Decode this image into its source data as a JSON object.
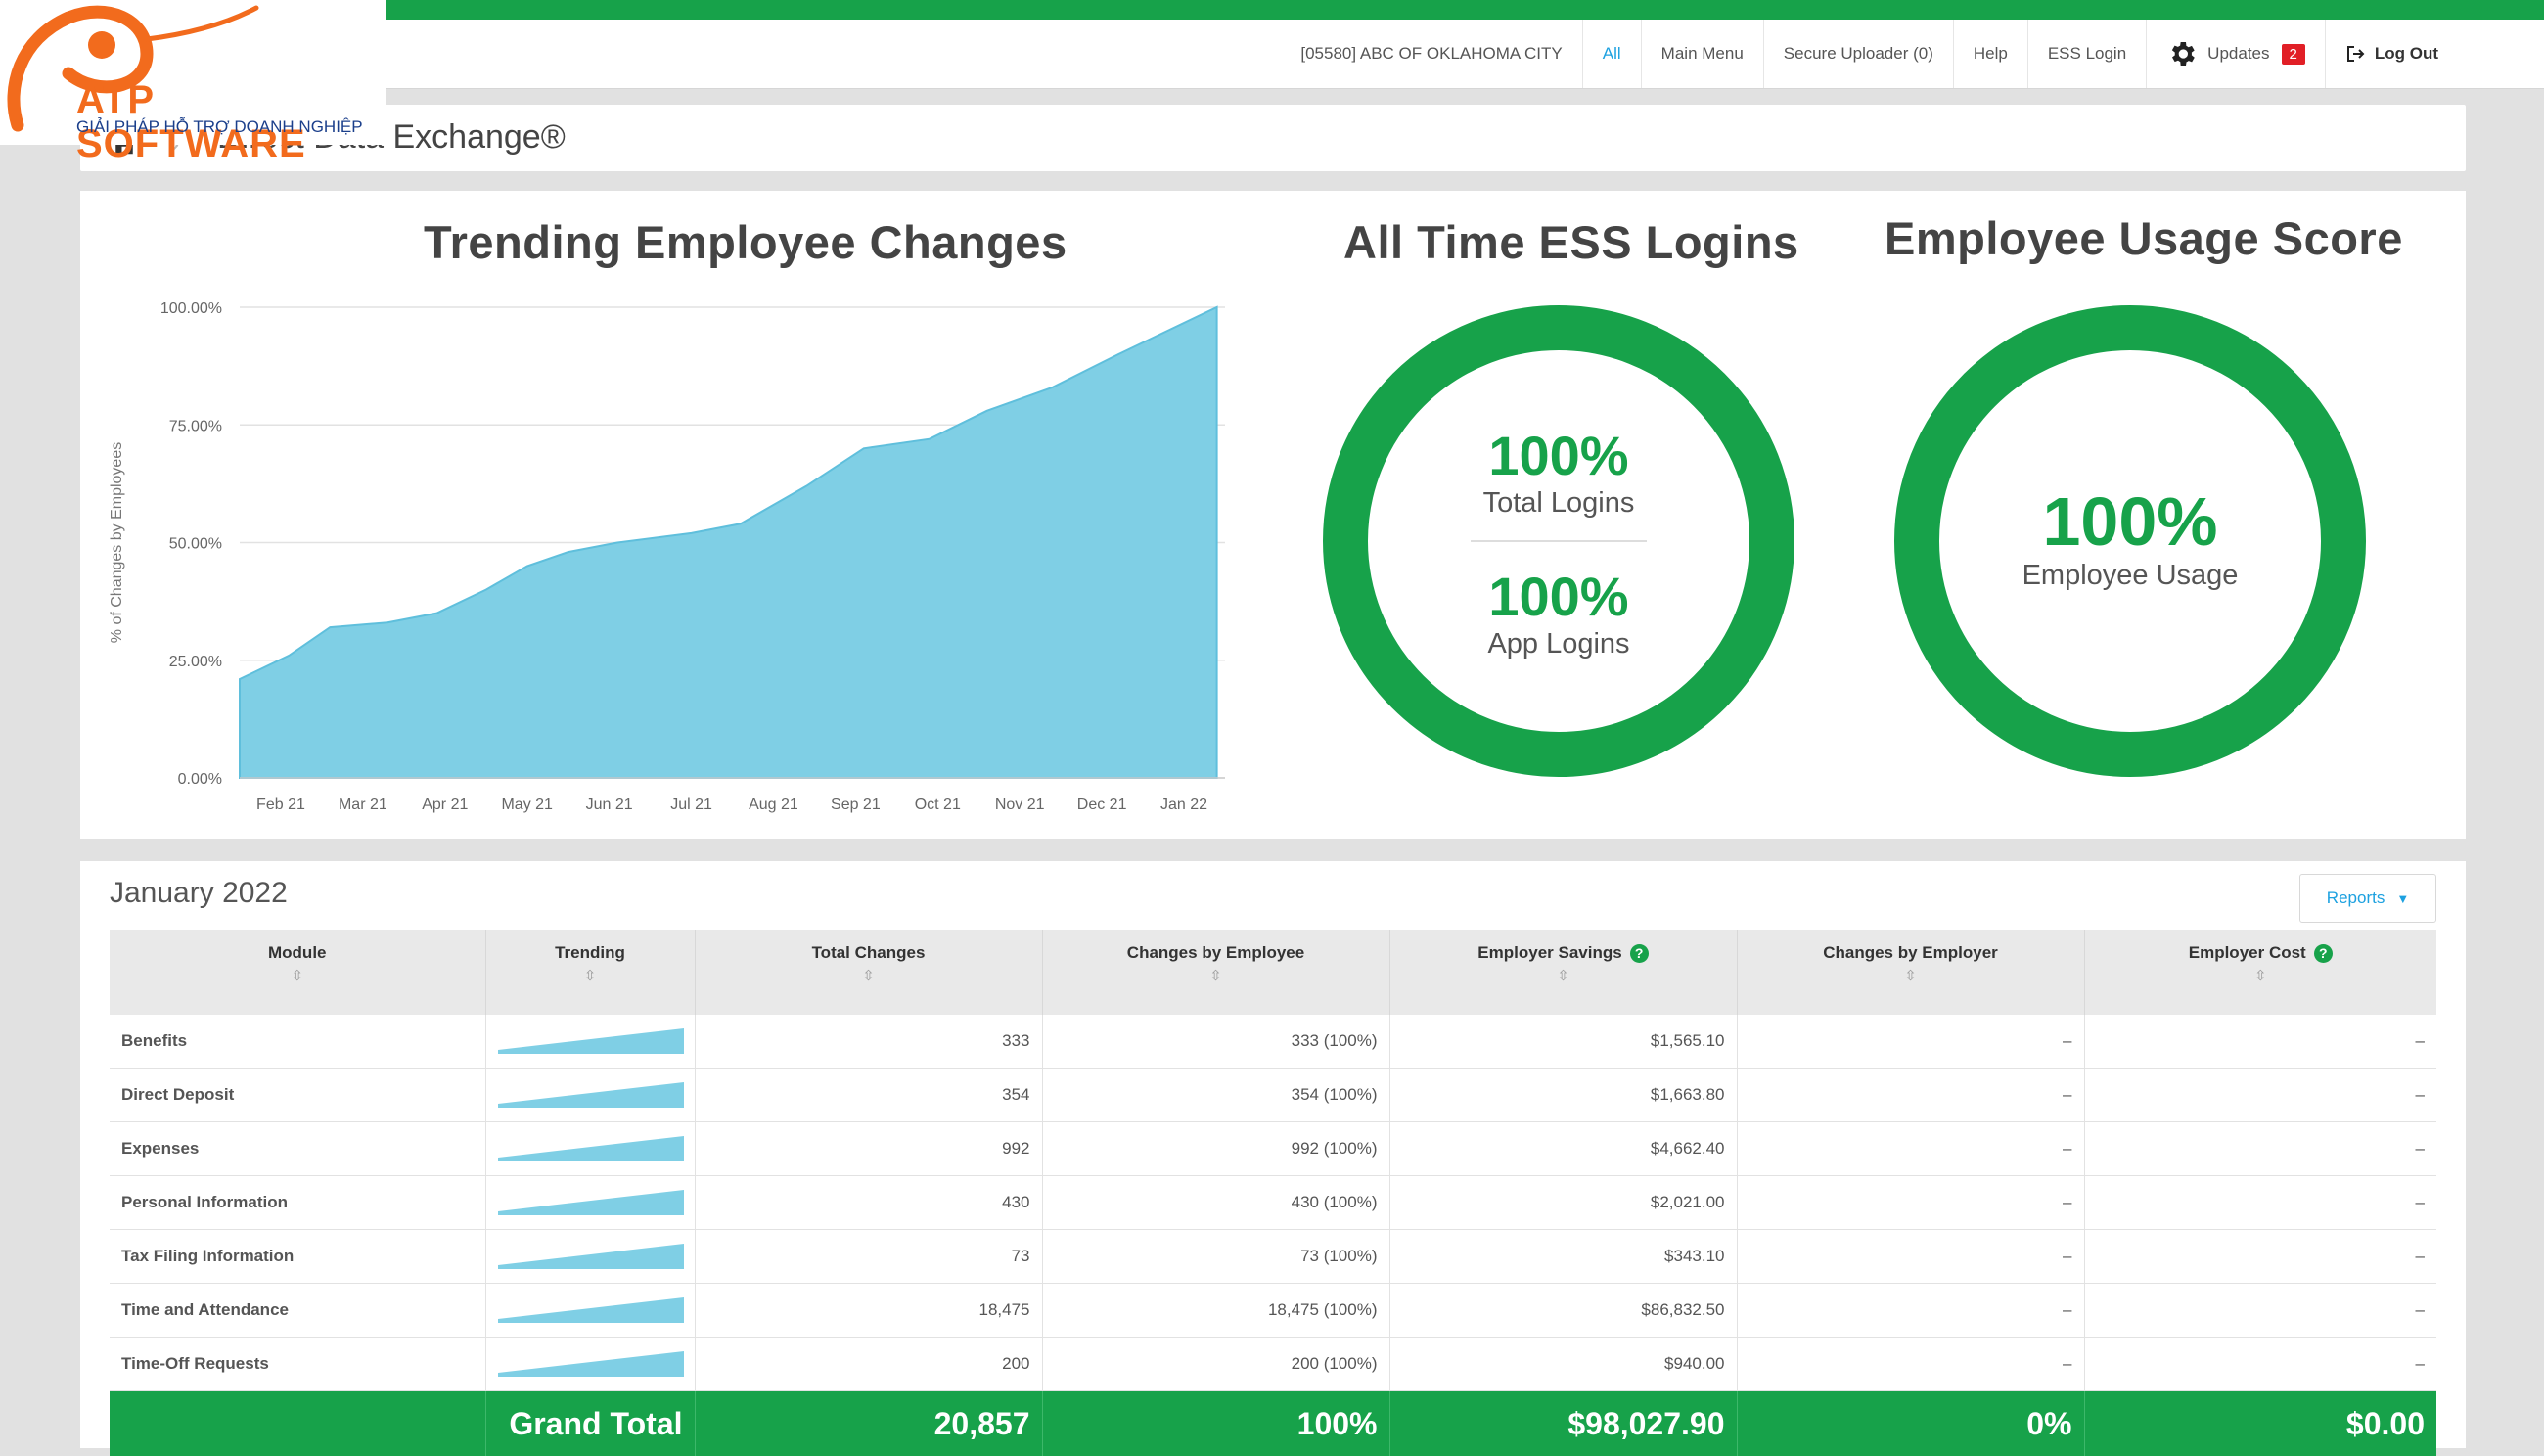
{
  "brand": {
    "name": "ATP SOFTWARE",
    "tagline": "GIẢI PHÁP HỖ TRỢ DOANH NGHIỆP"
  },
  "topnav": {
    "items": [
      {
        "label": "[05580] ABC OF OKLAHOMA CITY"
      },
      {
        "label": "All"
      },
      {
        "label": "Main Menu"
      },
      {
        "label": "Secure Uploader (0)"
      },
      {
        "label": "Help"
      },
      {
        "label": "ESS Login"
      },
      {
        "label": "Updates",
        "badge": "2"
      },
      {
        "label": "Log Out"
      }
    ]
  },
  "breadcrumb": {
    "title": "Direct Data Exchange®"
  },
  "trending": {
    "title": "Trending Employee Changes"
  },
  "chart_data": {
    "type": "area",
    "title": "Trending Employee Changes",
    "xlabel": "",
    "ylabel": "% of Changes by Employees",
    "categories": [
      "Feb 21",
      "Mar 21",
      "Apr 21",
      "May 21",
      "Jun 21",
      "Jul 21",
      "Aug 21",
      "Sep 21",
      "Oct 21",
      "Nov 21",
      "Dec 21",
      "Jan 22"
    ],
    "x_positions": [
      0.5,
      1.5,
      2.5,
      3.5,
      4.5,
      5.5,
      6.5,
      7.5,
      8.5,
      9.5,
      10.5,
      11.5
    ],
    "x": [
      0,
      0.6,
      1.1,
      1.8,
      2.4,
      3.0,
      3.5,
      4.0,
      4.6,
      5.5,
      6.1,
      6.9,
      7.6,
      8.4,
      9.1,
      9.9,
      10.7,
      11.9
    ],
    "y": [
      21,
      26,
      32,
      33,
      35,
      40,
      45,
      48,
      50,
      52,
      54,
      62,
      70,
      72,
      78,
      83,
      90,
      100
    ],
    "yticks": [
      "0.00%",
      "25.00%",
      "50.00%",
      "75.00%",
      "100.00%"
    ],
    "ylim": [
      0,
      100
    ],
    "grid": true,
    "color": "#7fcfe5"
  },
  "ess_logins": {
    "title": "All Time ESS Logins",
    "total_pct": "100%",
    "total_label": "Total Logins",
    "app_pct": "100%",
    "app_label": "App Logins"
  },
  "usage_score": {
    "title": "Employee Usage Score",
    "pct": "100%",
    "label": "Employee Usage"
  },
  "table": {
    "month": "January 2022",
    "reports_label": "Reports",
    "headers": [
      "Module",
      "Trending",
      "Total Changes",
      "Changes by Employee",
      "Employer Savings",
      "Changes by Employer",
      "Employer Cost"
    ],
    "rows": [
      {
        "module": "Benefits",
        "total": "333",
        "by_employee": "333 (100%)",
        "savings": "$1,565.10",
        "by_employer": "–",
        "cost": "–"
      },
      {
        "module": "Direct Deposit",
        "total": "354",
        "by_employee": "354 (100%)",
        "savings": "$1,663.80",
        "by_employer": "–",
        "cost": "–"
      },
      {
        "module": "Expenses",
        "total": "992",
        "by_employee": "992 (100%)",
        "savings": "$4,662.40",
        "by_employer": "–",
        "cost": "–"
      },
      {
        "module": "Personal Information",
        "total": "430",
        "by_employee": "430 (100%)",
        "savings": "$2,021.00",
        "by_employer": "–",
        "cost": "–"
      },
      {
        "module": "Tax Filing Information",
        "total": "73",
        "by_employee": "73 (100%)",
        "savings": "$343.10",
        "by_employer": "–",
        "cost": "–"
      },
      {
        "module": "Time and Attendance",
        "total": "18,475",
        "by_employee": "18,475 (100%)",
        "savings": "$86,832.50",
        "by_employer": "–",
        "cost": "–"
      },
      {
        "module": "Time-Off Requests",
        "total": "200",
        "by_employee": "200 (100%)",
        "savings": "$940.00",
        "by_employer": "–",
        "cost": "–"
      }
    ],
    "grand_total": {
      "label": "Grand Total",
      "total": "20,857",
      "by_employee": "100%",
      "savings": "$98,027.90",
      "by_employer": "0%",
      "cost": "$0.00"
    }
  },
  "colors": {
    "accent_green": "#17a24a",
    "link_blue": "#1da1e0",
    "area_blue": "#7fcfe5",
    "badge_red": "#e11f26"
  }
}
